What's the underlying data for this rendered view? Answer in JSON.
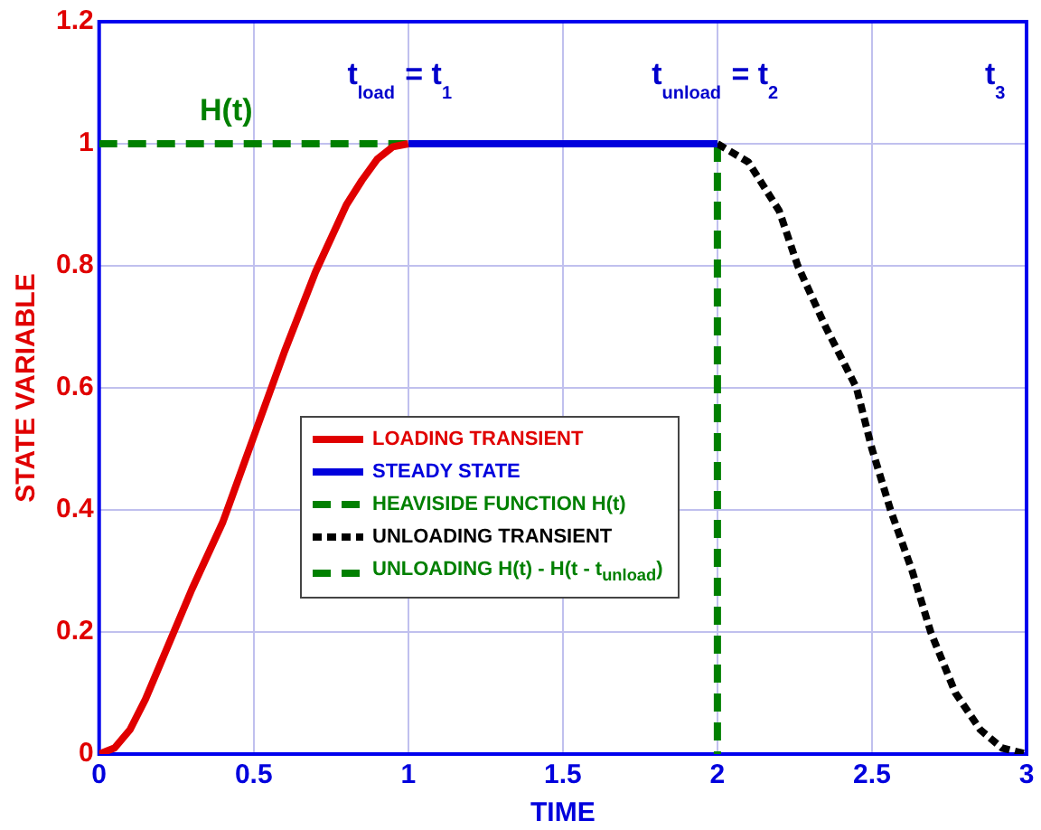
{
  "chart_data": {
    "type": "line",
    "xlabel": "TIME",
    "ylabel": "STATE VARIABLE",
    "xlim": [
      0,
      3
    ],
    "xticks": [
      0,
      0.5,
      1,
      1.5,
      2,
      2.5,
      3
    ],
    "ylim": [
      0,
      1.2
    ],
    "yticks": [
      0,
      0.2,
      0.4,
      0.6,
      0.8,
      1,
      1.2
    ],
    "grid": true,
    "legend": "bottom",
    "marker": "none",
    "series": [
      {
        "name": "LOADING TRANSIENT",
        "color": "#e00000",
        "line_style": "solid",
        "x": [
          0,
          0.05,
          0.1,
          0.15,
          0.2,
          0.25,
          0.3,
          0.4,
          0.5,
          0.6,
          0.7,
          0.8,
          0.85,
          0.9,
          0.95,
          1
        ],
        "values": [
          0,
          0.01,
          0.04,
          0.09,
          0.15,
          0.21,
          0.27,
          0.38,
          0.52,
          0.66,
          0.79,
          0.9,
          0.94,
          0.975,
          0.995,
          1
        ]
      },
      {
        "name": "STEADY STATE",
        "color": "#0000dd",
        "line_style": "solid",
        "x": [
          1,
          2
        ],
        "values": [
          1,
          1
        ]
      },
      {
        "name": "HEAVISIDE FUNCTION H(t)",
        "color": "#008000",
        "line_style": "dashed",
        "x": [
          0,
          2
        ],
        "values": [
          1,
          1
        ]
      },
      {
        "name": "UNLOADING TRANSIENT",
        "color": "#000000",
        "line_style": "dotted",
        "x": [
          2,
          2.1,
          2.2,
          2.26,
          2.35,
          2.45,
          2.5,
          2.56,
          2.63,
          2.69,
          2.77,
          2.85,
          2.92,
          3
        ],
        "values": [
          1,
          0.97,
          0.89,
          0.8,
          0.7,
          0.6,
          0.5,
          0.4,
          0.3,
          0.2,
          0.1,
          0.04,
          0.01,
          0
        ]
      },
      {
        "name": "UNLOADING H(t) - H(t - t$_{unload}$)",
        "color": "#008000",
        "line_style": "dashed",
        "x": [
          2,
          2
        ],
        "values": [
          1,
          0
        ]
      }
    ],
    "annotations": [
      "H(t)",
      "t$_{load}$ = t$_{1}$",
      "t$_{unload}$ = t$_{2}$",
      "t$_{3}$"
    ]
  }
}
